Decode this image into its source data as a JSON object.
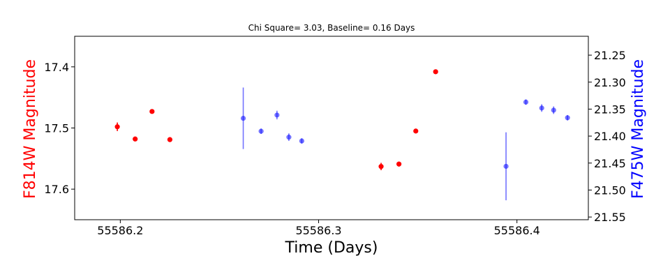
{
  "chart_data": {
    "type": "scatter",
    "title": "Chi Square= 3.03, Baseline= 0.16 Days",
    "xlabel": "Time (Days)",
    "ylabel_left": "F814W Magnitude",
    "ylabel_right": "F475W Magnitude",
    "xlim": [
      55586.177,
      55586.436
    ],
    "ylim_left": [
      17.35,
      17.65
    ],
    "ylim_right": [
      21.215,
      21.555
    ],
    "left_axis_inverted": true,
    "right_axis_inverted": true,
    "grid": false,
    "x_ticks": [
      55586.2,
      55586.3,
      55586.4
    ],
    "x_tick_labels": [
      "55586.2",
      "55586.3",
      "55586.4"
    ],
    "y_left_ticks": [
      17.4,
      17.5,
      17.6
    ],
    "y_left_tick_labels": [
      "17.4",
      "17.5",
      "17.6"
    ],
    "y_right_ticks": [
      21.25,
      21.3,
      21.35,
      21.4,
      21.45,
      21.5,
      21.55
    ],
    "y_right_tick_labels": [
      "21.25",
      "21.30",
      "21.35",
      "21.40",
      "21.45",
      "21.50",
      "21.55"
    ],
    "series": [
      {
        "axis": "left",
        "color": "#ff0000",
        "points": [
          {
            "x": 55586.1985,
            "y": 17.498,
            "err": 0.007
          },
          {
            "x": 55586.2075,
            "y": 17.518,
            "err": 0.003
          },
          {
            "x": 55586.216,
            "y": 17.473,
            "err": 0.003
          },
          {
            "x": 55586.225,
            "y": 17.519,
            "err": 0.003
          },
          {
            "x": 55586.3315,
            "y": 17.563,
            "err": 0.006
          },
          {
            "x": 55586.3405,
            "y": 17.559,
            "err": 0.004
          },
          {
            "x": 55586.349,
            "y": 17.505,
            "err": 0.003
          },
          {
            "x": 55586.359,
            "y": 17.408,
            "err": 0.003
          }
        ]
      },
      {
        "axis": "right",
        "color": "#0000ff",
        "points": [
          {
            "x": 55586.262,
            "y": 21.367,
            "err": 0.057
          },
          {
            "x": 55586.271,
            "y": 21.391,
            "err": 0.005
          },
          {
            "x": 55586.279,
            "y": 21.361,
            "err": 0.008
          },
          {
            "x": 55586.285,
            "y": 21.402,
            "err": 0.007
          },
          {
            "x": 55586.2915,
            "y": 21.409,
            "err": 0.005
          },
          {
            "x": 55586.3945,
            "y": 21.456,
            "err": 0.063
          },
          {
            "x": 55586.4045,
            "y": 21.337,
            "err": 0.005
          },
          {
            "x": 55586.4125,
            "y": 21.348,
            "err": 0.007
          },
          {
            "x": 55586.4185,
            "y": 21.352,
            "err": 0.007
          },
          {
            "x": 55586.4255,
            "y": 21.366,
            "err": 0.005
          }
        ]
      }
    ]
  }
}
